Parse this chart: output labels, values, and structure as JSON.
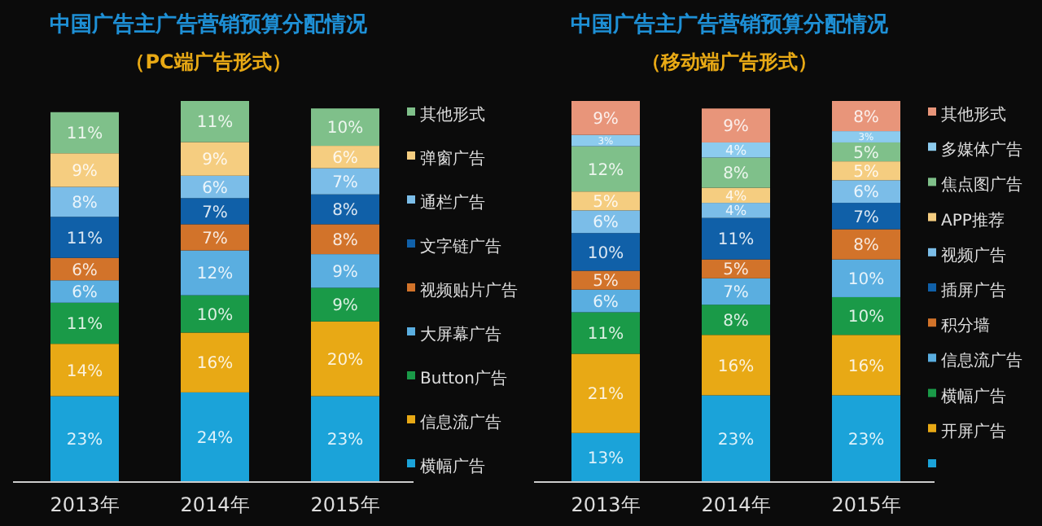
{
  "chart_data": [
    {
      "type": "bar",
      "title": "中国广告主广告营销预算分配情况",
      "subtitle": "（PC端广告形式）",
      "categories": [
        "2013年",
        "2014年",
        "2015年"
      ],
      "stacked": true,
      "legend": "right",
      "series": [
        {
          "name": "横幅广告",
          "color": "#1ba3d9",
          "values": [
            23,
            24,
            23
          ],
          "value_labels": [
            "23%",
            "24%",
            "23%"
          ]
        },
        {
          "name": "信息流广告",
          "color": "#e8a915",
          "values": [
            14,
            16,
            20
          ],
          "value_labels": [
            "14%",
            "16%",
            "20%"
          ]
        },
        {
          "name": "Button广告",
          "color": "#1a9a48",
          "values": [
            11,
            10,
            9
          ],
          "value_labels": [
            "11%",
            "10%",
            "9%"
          ]
        },
        {
          "name": "大屏幕广告",
          "color": "#5aaee0",
          "values": [
            6,
            12,
            9
          ],
          "value_labels": [
            "6%",
            "12%",
            "9%"
          ]
        },
        {
          "name": "视频贴片广告",
          "color": "#d2732a",
          "values": [
            6,
            7,
            8
          ],
          "value_labels": [
            "6%",
            "7%",
            "8%"
          ]
        },
        {
          "name": "文字链广告",
          "color": "#1060a8",
          "values": [
            11,
            7,
            8
          ],
          "value_labels": [
            "11%",
            "7%",
            "8%"
          ]
        },
        {
          "name": "通栏广告",
          "color": "#7bbde8",
          "values": [
            8,
            6,
            7
          ],
          "value_labels": [
            "8%",
            "6%",
            "7%"
          ]
        },
        {
          "name": "弹窗广告",
          "color": "#f5cd80",
          "values": [
            9,
            9,
            6
          ],
          "value_labels": [
            "9%",
            "9%",
            "6%"
          ]
        },
        {
          "name": "其他形式",
          "color": "#7fc08a",
          "values": [
            11,
            11,
            10
          ],
          "value_labels": [
            "11%",
            "11%",
            "10%"
          ]
        }
      ]
    },
    {
      "type": "bar",
      "title": "中国广告主广告营销预算分配情况",
      "subtitle": "（移动端广告形式）",
      "categories": [
        "2013年",
        "2014年",
        "2015年"
      ],
      "stacked": true,
      "legend": "right",
      "series": [
        {
          "color": "#1ba3d9",
          "values": [
            13,
            23,
            23
          ],
          "value_labels": [
            "13%",
            "23%",
            "23%"
          ]
        },
        {
          "name": "开屏广告",
          "color": "#e8a915",
          "values": [
            21,
            16,
            16
          ],
          "value_labels": [
            "21%",
            "16%",
            "16%"
          ]
        },
        {
          "name": "横幅广告",
          "color": "#1a9a48",
          "values": [
            11,
            8,
            10
          ],
          "value_labels": [
            "11%",
            "8%",
            "10%"
          ]
        },
        {
          "name": "信息流广告",
          "color": "#5aaee0",
          "values": [
            6,
            7,
            10
          ],
          "value_labels": [
            "6%",
            "7%",
            "10%"
          ]
        },
        {
          "name": "积分墙",
          "color": "#d2732a",
          "values": [
            5,
            5,
            8
          ],
          "value_labels": [
            "5%",
            "5%",
            "8%"
          ]
        },
        {
          "name": "插屏广告",
          "color": "#1060a8",
          "values": [
            10,
            11,
            7
          ],
          "value_labels": [
            "10%",
            "11%",
            "7%"
          ]
        },
        {
          "name": "视频广告",
          "color": "#7bbde8",
          "values": [
            6,
            4,
            6
          ],
          "value_labels": [
            "6%",
            "4%",
            "6%"
          ]
        },
        {
          "name": "APP推荐",
          "color": "#f5cd80",
          "values": [
            5,
            4,
            5
          ],
          "value_labels": [
            "5%",
            "4%",
            "5%"
          ]
        },
        {
          "name": "焦点图广告",
          "color": "#7fc08a",
          "values": [
            12,
            8,
            5
          ],
          "value_labels": [
            "12%",
            "8%",
            "5%"
          ]
        },
        {
          "name": "多媒体广告",
          "color": "#8ccbee",
          "values": [
            3,
            4,
            3
          ],
          "value_labels": [
            "3%",
            "4%",
            "3%"
          ]
        },
        {
          "name": "其他形式",
          "color": "#e8957a",
          "values": [
            9,
            9,
            8
          ],
          "value_labels": [
            "9%",
            "9%",
            "8%"
          ]
        }
      ]
    }
  ]
}
